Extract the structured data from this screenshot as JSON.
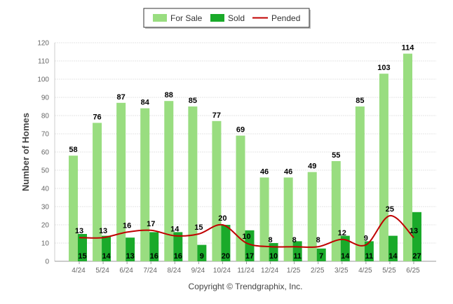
{
  "chart_data": {
    "type": "bar",
    "categories": [
      "4/24",
      "5/24",
      "6/24",
      "7/24",
      "8/24",
      "9/24",
      "10/24",
      "11/24",
      "12/24",
      "1/25",
      "2/25",
      "3/25",
      "4/25",
      "5/25",
      "6/25"
    ],
    "series": [
      {
        "name": "For Sale",
        "type": "bar",
        "color": "#99dd80",
        "values": [
          58,
          76,
          87,
          84,
          88,
          85,
          77,
          69,
          46,
          46,
          49,
          55,
          85,
          103,
          114
        ]
      },
      {
        "name": "Sold",
        "type": "bar",
        "color": "#1aaa2a",
        "values": [
          15,
          14,
          13,
          16,
          16,
          9,
          20,
          17,
          10,
          11,
          7,
          14,
          11,
          14,
          27
        ]
      },
      {
        "name": "Pended",
        "type": "line",
        "color": "#c00000",
        "values": [
          13,
          13,
          16,
          17,
          14,
          15,
          20,
          10,
          8,
          8,
          8,
          12,
          9,
          25,
          13
        ]
      }
    ],
    "ylabel": "Number of Homes",
    "ylim": [
      0,
      120
    ],
    "yticks": [
      0,
      10,
      20,
      30,
      40,
      50,
      60,
      70,
      80,
      90,
      100,
      110,
      120
    ],
    "grid": true,
    "legend_position": "top-center",
    "credit": "Copyright © Trendgraphix, Inc."
  }
}
